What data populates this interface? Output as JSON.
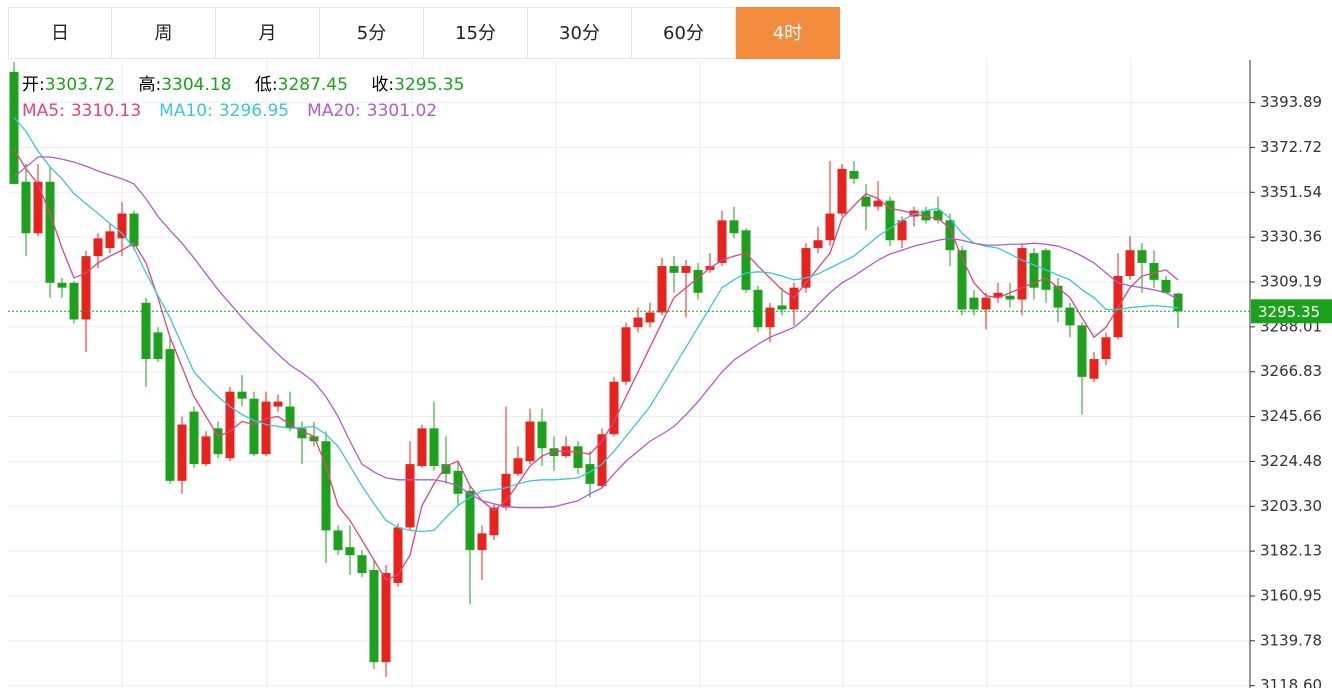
{
  "tabs": [
    "日",
    "周",
    "月",
    "5分",
    "15分",
    "30分",
    "60分",
    "4时"
  ],
  "active_tab": 7,
  "chart_data": {
    "type": "candlestick",
    "ohlc_labels": {
      "open": "开:",
      "high": "高:",
      "low": "低:",
      "close": "收:"
    },
    "up_color": "#e8221c",
    "down_color": "#1ca11c",
    "value_color": "#1ca11c",
    "last_line_color": "#1ca11c",
    "ylim": [
      3117.5,
      3414.0
    ],
    "yticks": [
      3393.89,
      3372.72,
      3351.54,
      3330.36,
      3309.19,
      3288.01,
      3266.83,
      3245.66,
      3224.48,
      {
        "value": 3203.3,
        "label": "3203.30"
      },
      3182.13,
      3160.95,
      3139.78,
      {
        "value": 3118.6,
        "label": "3118.60"
      }
    ],
    "grid": true,
    "open": [
      3408.4,
      3356.5,
      3332.2,
      3356.5,
      3308.8,
      3308.8,
      3291.5,
      3321.4,
      3325.2,
      3329.8,
      3341.5,
      3299.4,
      3285.4,
      3277.5,
      3215.3,
      3248.0,
      3223.2,
      3240.1,
      3226.0,
      3257.4,
      3254.1,
      3227.9,
      3250.4,
      3250.4,
      3240.1,
      3236.3,
      3234.0,
      3191.9,
      3184.0,
      3180.2,
      3173.2,
      3129.7,
      3167.1,
      3193.3,
      3222.3,
      3240.1,
      3223.2,
      3220.0,
      3210.6,
      3182.6,
      3189.6,
      3202.7,
      3218.6,
      3224.6,
      3243.3,
      3230.7,
      3227.0,
      3231.6,
      3223.2,
      3212.9,
      3237.3,
      3262.1,
      3287.8,
      3290.1,
      3294.8,
      3316.7,
      3313.5,
      3314.9,
      3314.9,
      3318.2,
      3338.3,
      3333.6,
      3305.5,
      3287.8,
      3298.1,
      3296.2,
      3306.5,
      3325.2,
      3328.9,
      3341.5,
      3361.6,
      3349.5,
      3344.8,
      3347.6,
      3328.9,
      3340.1,
      3342.9,
      3342.9,
      3338.3,
      3324.2,
      3301.8,
      3296.2,
      3301.8,
      3302.7,
      3300.9,
      3322.8,
      3324.2,
      3307.4,
      3297.1,
      3288.7,
      3263.5,
      3272.8,
      3283.1,
      3312.0,
      3324.2,
      3318.2,
      3310.2,
      3303.72
    ],
    "high": [
      3413.1,
      3364.9,
      3364.9,
      3363.5,
      3311.1,
      3309.7,
      3323.8,
      3332.2,
      3336.9,
      3347.1,
      3342.9,
      3301.8,
      3287.8,
      3283.1,
      3245.7,
      3250.4,
      3238.7,
      3243.3,
      3259.7,
      3265.3,
      3257.4,
      3257.4,
      3256.0,
      3257.4,
      3243.3,
      3243.3,
      3238.7,
      3194.3,
      3194.3,
      3182.6,
      3177.9,
      3175.6,
      3195.2,
      3234.0,
      3241.9,
      3252.7,
      3236.3,
      3224.6,
      3212.9,
      3194.3,
      3204.5,
      3250.4,
      3231.6,
      3249.4,
      3249.4,
      3236.3,
      3236.3,
      3234.0,
      3229.3,
      3240.1,
      3264.4,
      3290.1,
      3297.1,
      3299.4,
      3320.5,
      3321.4,
      3319.6,
      3318.2,
      3322.8,
      3342.9,
      3344.8,
      3334.5,
      3307.4,
      3299.4,
      3306.5,
      3308.8,
      3327.5,
      3335.4,
      3366.3,
      3364.9,
      3366.3,
      3355.5,
      3356.9,
      3349.5,
      3340.1,
      3344.8,
      3344.8,
      3349.5,
      3341.5,
      3326.1,
      3305.5,
      3304.1,
      3308.8,
      3308.8,
      3327.5,
      3325.2,
      3325.2,
      3311.1,
      3299.4,
      3290.1,
      3276.1,
      3285.4,
      3322.8,
      3330.8,
      3327.5,
      3324.2,
      3312.0,
      3304.18
    ],
    "low": [
      3355.5,
      3321.4,
      3330.8,
      3301.8,
      3301.8,
      3289.6,
      3276.1,
      3315.8,
      3322.8,
      3321.4,
      3324.2,
      3259.7,
      3271.4,
      3213.9,
      3209.2,
      3221.4,
      3222.3,
      3226.0,
      3224.6,
      3250.4,
      3227.0,
      3227.0,
      3248.0,
      3238.7,
      3223.2,
      3231.6,
      3176.5,
      3180.2,
      3170.9,
      3169.9,
      3126.5,
      3122.7,
      3165.3,
      3191.9,
      3221.4,
      3220.0,
      3213.9,
      3203.6,
      3156.9,
      3168.5,
      3187.3,
      3201.3,
      3217.6,
      3223.2,
      3222.3,
      3220.0,
      3226.0,
      3218.6,
      3207.4,
      3212.0,
      3236.3,
      3260.6,
      3285.4,
      3287.8,
      3293.4,
      3304.1,
      3292.4,
      3300.9,
      3313.5,
      3316.7,
      3329.8,
      3304.1,
      3285.4,
      3280.8,
      3293.4,
      3288.7,
      3304.1,
      3322.8,
      3326.1,
      3340.1,
      3355.5,
      3333.6,
      3342.9,
      3326.1,
      3325.2,
      3335.4,
      3336.8,
      3336.8,
      3316.7,
      3293.4,
      3293.4,
      3286.8,
      3299.4,
      3297.1,
      3293.4,
      3300.9,
      3299.4,
      3290.1,
      3283.1,
      3246.6,
      3262.0,
      3270.0,
      3282.1,
      3310.2,
      3304.1,
      3306.5,
      3304.1,
      3287.45
    ],
    "close": [
      3355.5,
      3332.2,
      3356.5,
      3308.8,
      3306.5,
      3291.5,
      3321.4,
      3329.8,
      3333.1,
      3341.5,
      3326.1,
      3272.8,
      3272.8,
      3215.3,
      3241.9,
      3223.2,
      3236.3,
      3227.9,
      3257.4,
      3254.1,
      3227.9,
      3252.7,
      3252.7,
      3240.1,
      3235.4,
      3234.0,
      3191.9,
      3182.6,
      3180.2,
      3171.8,
      3129.7,
      3171.8,
      3193.3,
      3223.2,
      3240.1,
      3222.3,
      3218.6,
      3209.2,
      3182.6,
      3190.5,
      3202.7,
      3218.6,
      3226.0,
      3243.3,
      3230.7,
      3227.0,
      3231.6,
      3221.4,
      3213.9,
      3237.3,
      3262.1,
      3287.8,
      3292.4,
      3294.8,
      3316.7,
      3313.5,
      3316.7,
      3304.1,
      3316.7,
      3338.3,
      3332.2,
      3305.5,
      3287.8,
      3297.1,
      3296.2,
      3306.5,
      3325.2,
      3328.9,
      3341.5,
      3362.6,
      3357.9,
      3344.8,
      3347.6,
      3328.9,
      3338.3,
      3342.9,
      3338.3,
      3338.3,
      3324.2,
      3296.2,
      3296.2,
      3301.8,
      3304.1,
      3300.9,
      3325.2,
      3306.5,
      3305.5,
      3297.1,
      3288.7,
      3264.4,
      3272.8,
      3283.1,
      3312.0,
      3324.2,
      3318.2,
      3310.2,
      3304.1,
      3295.35
    ],
    "series": [
      {
        "name": "MA5:",
        "color": "#e2447c",
        "values": [
          3371.9,
          3362.6,
          3355.5,
          3341.5,
          3325.2,
          3311.1,
          3313.5,
          3318.2,
          3321.4,
          3324.2,
          3327.5,
          3318.2,
          3301.8,
          3283.1,
          3269.1,
          3255.0,
          3245.7,
          3236.3,
          3238.7,
          3243.3,
          3241.9,
          3244.7,
          3245.7,
          3241.9,
          3238.7,
          3236.3,
          3222.3,
          3203.6,
          3196.6,
          3187.3,
          3177.9,
          3168.5,
          3170.9,
          3180.2,
          3203.6,
          3213.9,
          3222.3,
          3224.6,
          3212.9,
          3205.9,
          3201.3,
          3205.9,
          3213.9,
          3222.3,
          3227.0,
          3229.3,
          3229.3,
          3228.9,
          3227.9,
          3234.0,
          3243.3,
          3255.0,
          3266.7,
          3278.4,
          3290.1,
          3301.8,
          3306.5,
          3311.1,
          3315.8,
          3319.5,
          3321.4,
          3322.8,
          3316.7,
          3311.1,
          3305.5,
          3301.8,
          3308.8,
          3315.8,
          3322.8,
          3339.2,
          3345.2,
          3350.9,
          3348.5,
          3343.9,
          3342.9,
          3341.5,
          3340.1,
          3339.2,
          3334.5,
          3320.5,
          3308.8,
          3302.7,
          3301.8,
          3304.1,
          3306.5,
          3308.8,
          3311.1,
          3306.5,
          3301.8,
          3292.4,
          3283.1,
          3287.8,
          3297.1,
          3306.5,
          3312.0,
          3313.5,
          3314.9,
          3310.13
        ]
      },
      {
        "name": "MA10:",
        "color": "#3cc6d6",
        "values": [
          3386.9,
          3380.3,
          3371.0,
          3363.5,
          3357.9,
          3350.9,
          3346.2,
          3341.5,
          3336.8,
          3332.2,
          3325.2,
          3313.5,
          3302.7,
          3292.4,
          3279.4,
          3266.7,
          3260.6,
          3255.0,
          3250.4,
          3246.6,
          3243.8,
          3241.9,
          3241.0,
          3240.1,
          3240.5,
          3241.0,
          3237.3,
          3231.6,
          3222.3,
          3212.9,
          3204.5,
          3196.6,
          3193.3,
          3191.9,
          3191.4,
          3191.9,
          3198.0,
          3203.6,
          3207.4,
          3210.6,
          3211.1,
          3212.0,
          3213.9,
          3215.3,
          3215.8,
          3215.8,
          3216.2,
          3216.7,
          3219.5,
          3223.2,
          3229.3,
          3236.3,
          3243.3,
          3250.4,
          3259.7,
          3269.1,
          3278.4,
          3287.8,
          3297.1,
          3306.5,
          3310.2,
          3313.5,
          3314.0,
          3313.5,
          3312.0,
          3310.2,
          3311.1,
          3313.0,
          3315.8,
          3318.6,
          3321.4,
          3326.1,
          3330.8,
          3334.5,
          3338.3,
          3341.2,
          3342.9,
          3343.9,
          3339.2,
          3332.2,
          3327.5,
          3326.1,
          3325.2,
          3322.4,
          3319.5,
          3317.2,
          3314.9,
          3312.5,
          3310.2,
          3305.5,
          3301.8,
          3296.2,
          3296.2,
          3297.1,
          3297.6,
          3298.1,
          3297.6,
          3296.95
        ]
      },
      {
        "name": "MA20:",
        "color": "#b05ec6",
        "values": [
          3358.8,
          3363.5,
          3368.2,
          3368.2,
          3367.2,
          3365.8,
          3363.9,
          3361.6,
          3359.7,
          3357.9,
          3355.5,
          3348.5,
          3340.1,
          3333.6,
          3327.5,
          3320.5,
          3313.0,
          3305.5,
          3299.0,
          3292.4,
          3286.4,
          3280.7,
          3275.1,
          3270.0,
          3266.3,
          3262.0,
          3255.0,
          3245.7,
          3234.0,
          3223.2,
          3219.5,
          3216.7,
          3215.8,
          3215.8,
          3215.8,
          3215.8,
          3214.8,
          3212.9,
          3209.2,
          3205.9,
          3204.5,
          3203.1,
          3202.7,
          3202.7,
          3202.7,
          3203.1,
          3204.5,
          3205.9,
          3209.2,
          3212.0,
          3218.6,
          3224.6,
          3229.3,
          3234.0,
          3237.3,
          3241.0,
          3246.6,
          3252.7,
          3259.7,
          3266.7,
          3272.3,
          3276.1,
          3279.8,
          3283.1,
          3285.4,
          3287.8,
          3292.4,
          3298.5,
          3304.1,
          3308.8,
          3312.0,
          3315.8,
          3319.5,
          3322.4,
          3324.2,
          3326.1,
          3327.5,
          3328.9,
          3329.8,
          3328.9,
          3327.5,
          3326.6,
          3326.6,
          3327.0,
          3327.0,
          3327.5,
          3327.0,
          3326.1,
          3324.2,
          3321.4,
          3318.2,
          3313.5,
          3308.8,
          3307.4,
          3306.5,
          3305.5,
          3304.1,
          3301.02
        ]
      }
    ]
  }
}
